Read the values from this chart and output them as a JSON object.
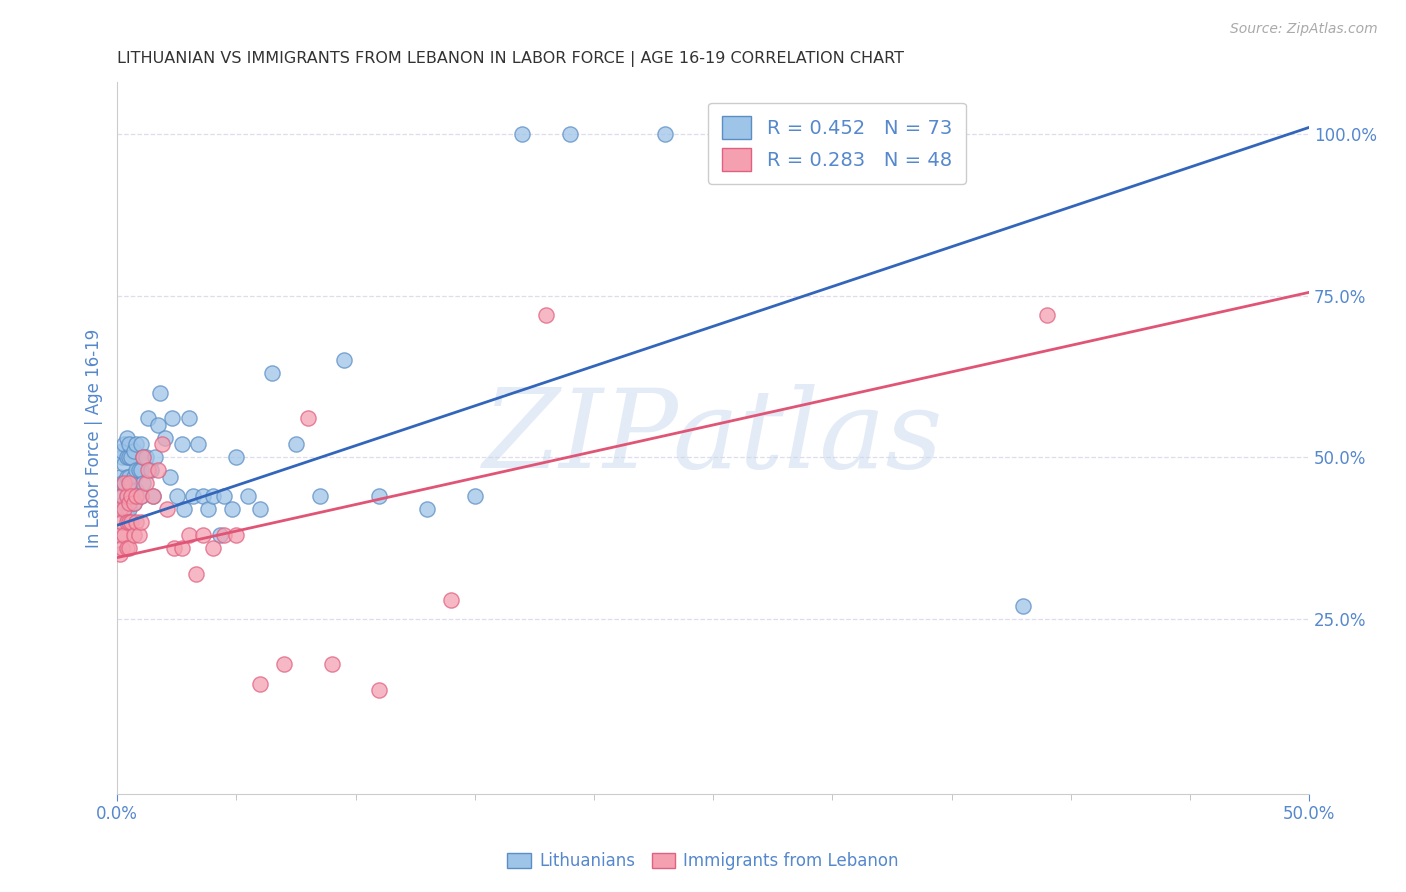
{
  "title": "LITHUANIAN VS IMMIGRANTS FROM LEBANON IN LABOR FORCE | AGE 16-19 CORRELATION CHART",
  "source": "Source: ZipAtlas.com",
  "ylabel": "In Labor Force | Age 16-19",
  "xlim": [
    0.0,
    0.5
  ],
  "ylim": [
    -0.02,
    1.08
  ],
  "yticks_right": [
    0.0,
    0.25,
    0.5,
    0.75,
    1.0
  ],
  "blue_color": "#9EC4E8",
  "pink_color": "#F4A0B0",
  "blue_edge_color": "#5B8EC4",
  "pink_edge_color": "#E06080",
  "blue_line_color": "#3366BB",
  "pink_line_color": "#E05575",
  "legend_R1": "R = 0.452",
  "legend_N1": "N = 73",
  "legend_R2": "R = 0.283",
  "legend_N2": "N = 48",
  "watermark": "ZIPatlas",
  "watermark_color": "#C8D8EE",
  "blue_line_x0": 0.0,
  "blue_line_y0": 0.395,
  "blue_line_x1": 0.5,
  "blue_line_y1": 1.01,
  "pink_line_x0": 0.0,
  "pink_line_y0": 0.345,
  "pink_line_x1": 0.5,
  "pink_line_y1": 0.755,
  "blue_scatter_x": [
    0.001,
    0.001,
    0.002,
    0.002,
    0.002,
    0.002,
    0.003,
    0.003,
    0.003,
    0.003,
    0.004,
    0.004,
    0.004,
    0.004,
    0.004,
    0.005,
    0.005,
    0.005,
    0.005,
    0.005,
    0.006,
    0.006,
    0.006,
    0.007,
    0.007,
    0.007,
    0.008,
    0.008,
    0.008,
    0.009,
    0.01,
    0.01,
    0.01,
    0.011,
    0.011,
    0.012,
    0.013,
    0.014,
    0.015,
    0.016,
    0.017,
    0.018,
    0.02,
    0.022,
    0.023,
    0.025,
    0.027,
    0.028,
    0.03,
    0.032,
    0.034,
    0.036,
    0.038,
    0.04,
    0.043,
    0.045,
    0.048,
    0.05,
    0.055,
    0.06,
    0.065,
    0.075,
    0.085,
    0.095,
    0.11,
    0.13,
    0.15,
    0.17,
    0.19,
    0.23,
    0.28,
    0.38,
    0.65
  ],
  "blue_scatter_y": [
    0.44,
    0.47,
    0.42,
    0.46,
    0.5,
    0.51,
    0.43,
    0.46,
    0.49,
    0.52,
    0.41,
    0.44,
    0.47,
    0.5,
    0.53,
    0.42,
    0.44,
    0.47,
    0.5,
    0.52,
    0.44,
    0.46,
    0.5,
    0.43,
    0.47,
    0.51,
    0.45,
    0.48,
    0.52,
    0.48,
    0.44,
    0.48,
    0.52,
    0.46,
    0.5,
    0.5,
    0.56,
    0.48,
    0.44,
    0.5,
    0.55,
    0.6,
    0.53,
    0.47,
    0.56,
    0.44,
    0.52,
    0.42,
    0.56,
    0.44,
    0.52,
    0.44,
    0.42,
    0.44,
    0.38,
    0.44,
    0.42,
    0.5,
    0.44,
    0.42,
    0.63,
    0.52,
    0.44,
    0.65,
    0.44,
    0.42,
    0.44,
    1.0,
    1.0,
    1.0,
    1.0,
    0.27,
    0.77
  ],
  "pink_scatter_x": [
    0.001,
    0.001,
    0.001,
    0.002,
    0.002,
    0.002,
    0.003,
    0.003,
    0.003,
    0.004,
    0.004,
    0.004,
    0.005,
    0.005,
    0.005,
    0.005,
    0.006,
    0.006,
    0.007,
    0.007,
    0.008,
    0.008,
    0.009,
    0.01,
    0.01,
    0.011,
    0.012,
    0.013,
    0.015,
    0.017,
    0.019,
    0.021,
    0.024,
    0.027,
    0.03,
    0.033,
    0.036,
    0.04,
    0.045,
    0.05,
    0.06,
    0.07,
    0.08,
    0.09,
    0.11,
    0.14,
    0.18,
    0.39
  ],
  "pink_scatter_y": [
    0.42,
    0.38,
    0.35,
    0.44,
    0.4,
    0.36,
    0.46,
    0.42,
    0.38,
    0.44,
    0.4,
    0.36,
    0.46,
    0.43,
    0.4,
    0.36,
    0.44,
    0.4,
    0.43,
    0.38,
    0.44,
    0.4,
    0.38,
    0.44,
    0.4,
    0.5,
    0.46,
    0.48,
    0.44,
    0.48,
    0.52,
    0.42,
    0.36,
    0.36,
    0.38,
    0.32,
    0.38,
    0.36,
    0.38,
    0.38,
    0.15,
    0.18,
    0.56,
    0.18,
    0.14,
    0.28,
    0.72,
    0.72
  ],
  "bg_color": "#FFFFFF",
  "grid_color": "#DDDDEE",
  "title_color": "#333333",
  "axis_label_color": "#5588CC",
  "tick_color": "#5588CC"
}
